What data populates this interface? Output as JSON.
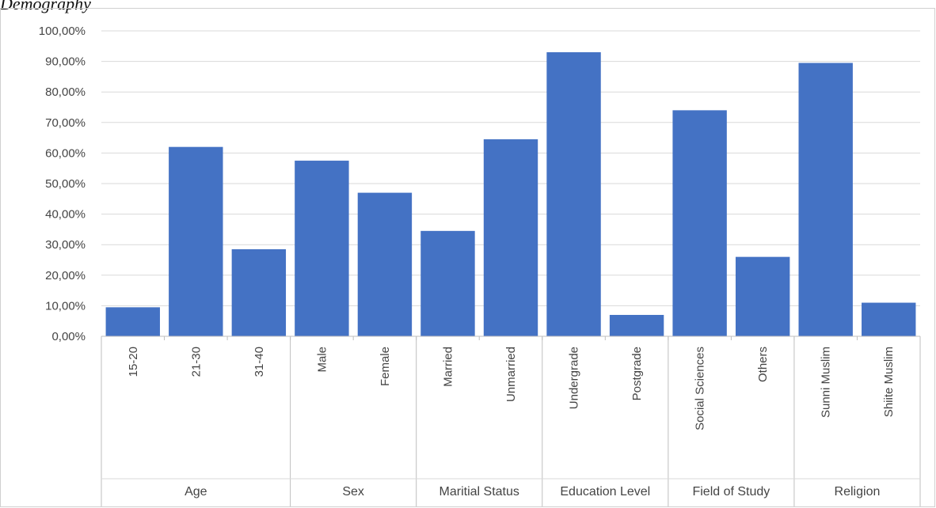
{
  "chart_data": {
    "type": "bar",
    "title": "Demography",
    "xlabel": "",
    "ylabel": "",
    "ylim": [
      0,
      100
    ],
    "ytick_step": 10,
    "ytick_labels": [
      "0,00%",
      "10,00%",
      "20,00%",
      "30,00%",
      "40,00%",
      "50,00%",
      "60,00%",
      "70,00%",
      "80,00%",
      "90,00%",
      "100,00%"
    ],
    "grid": true,
    "legend": "none",
    "bar_color": "#4472C4",
    "groups": [
      {
        "name": "Age",
        "categories": [
          "15-20",
          "21-30",
          "31-40"
        ],
        "values": [
          9.5,
          62.0,
          28.5
        ]
      },
      {
        "name": "Sex",
        "categories": [
          "Male",
          "Female"
        ],
        "values": [
          57.5,
          47.0
        ]
      },
      {
        "name": "Maritial Status",
        "categories": [
          "Married",
          "Unmarried"
        ],
        "values": [
          34.5,
          64.5
        ]
      },
      {
        "name": "Education Level",
        "categories": [
          "Undergrade",
          "Postgrade"
        ],
        "values": [
          93.0,
          7.0
        ]
      },
      {
        "name": "Field of Study",
        "categories": [
          "Social Sciences",
          "Others"
        ],
        "values": [
          74.0,
          26.0
        ]
      },
      {
        "name": "Religion",
        "categories": [
          "Sunni Muslim",
          "Shiite Muslim"
        ],
        "values": [
          89.5,
          11.0
        ]
      }
    ]
  }
}
